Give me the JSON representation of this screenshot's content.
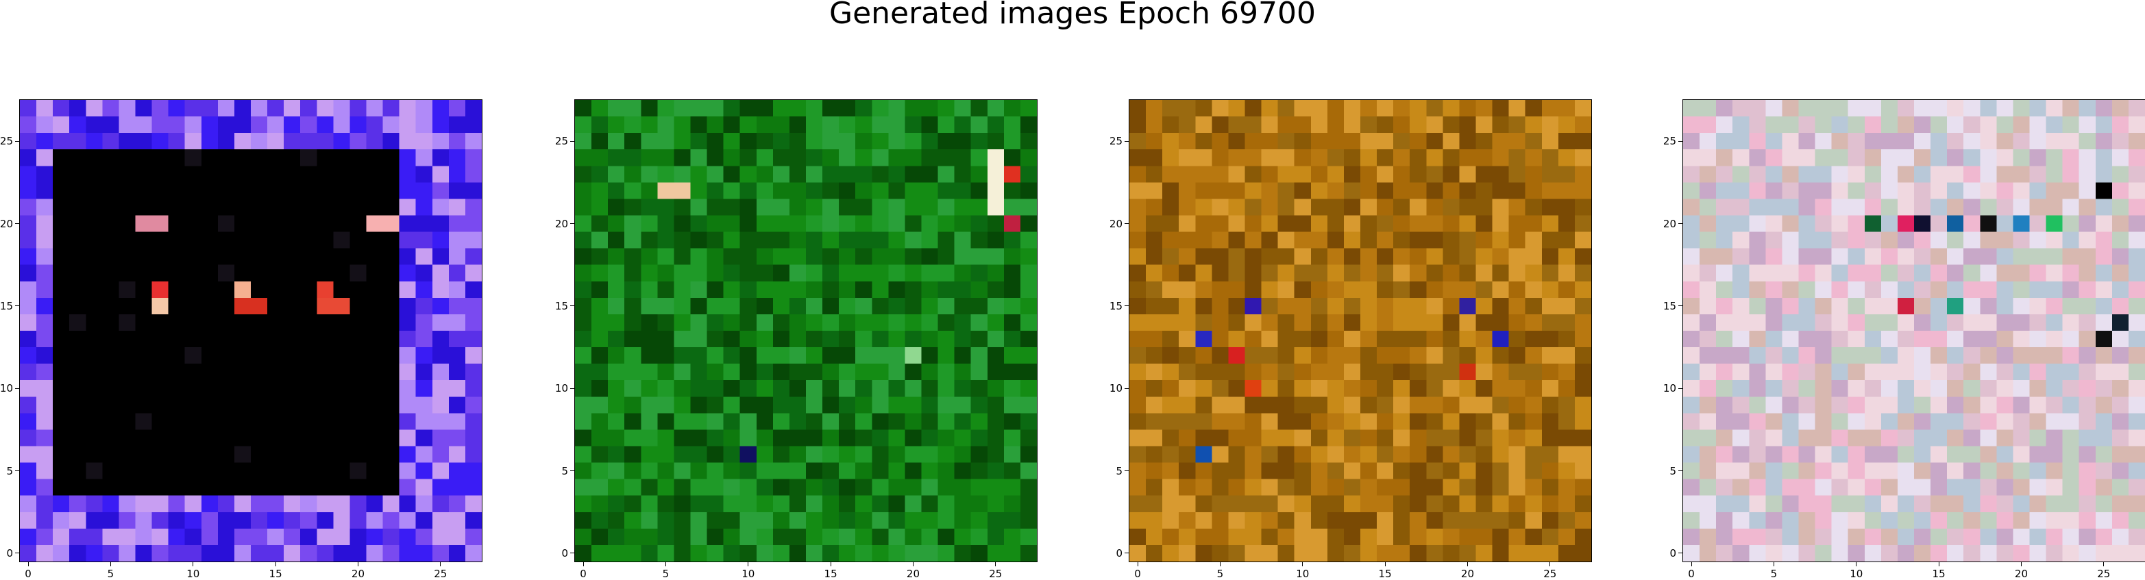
{
  "figure": {
    "title": "Generated images Epoch 69700"
  },
  "chart_data": [
    {
      "type": "heatmap",
      "image": "generated-sample-1",
      "grid": [
        28,
        28
      ],
      "title": "",
      "xlabel": "",
      "ylabel": "",
      "xlim": [
        -0.5,
        27.5
      ],
      "ylim": [
        27.5,
        -0.5
      ],
      "xticks": [
        0,
        5,
        10,
        15,
        20,
        25
      ],
      "yticks": [
        0,
        5,
        10,
        15,
        20,
        25
      ],
      "palette": {
        "background": "#000000",
        "border": [
          "#3a1cf5",
          "#7a4af0",
          "#b08af8",
          "#5a30e8",
          "#2a10d8",
          "#c89ef2"
        ],
        "highlights": [
          {
            "row": 7,
            "cols": [
              7,
              8
            ],
            "color": "#e08aa0"
          },
          {
            "row": 7,
            "cols": [
              21,
              22
            ],
            "color": "#f7b0b0"
          },
          {
            "row": 11,
            "cols": [
              8
            ],
            "color": "#e83030"
          },
          {
            "row": 12,
            "cols": [
              8
            ],
            "color": "#f5c8a8"
          },
          {
            "row": 11,
            "cols": [
              13
            ],
            "color": "#f5b090"
          },
          {
            "row": 12,
            "cols": [
              13,
              14
            ],
            "color": "#d83020"
          },
          {
            "row": 11,
            "cols": [
              18
            ],
            "color": "#e84030"
          },
          {
            "row": 12,
            "cols": [
              18,
              19
            ],
            "color": "#e84a35"
          }
        ]
      }
    },
    {
      "type": "heatmap",
      "image": "generated-sample-2",
      "grid": [
        28,
        28
      ],
      "title": "",
      "xlabel": "",
      "ylabel": "",
      "xlim": [
        -0.5,
        27.5
      ],
      "ylim": [
        27.5,
        -0.5
      ],
      "xticks": [
        0,
        5,
        10,
        15,
        20,
        25
      ],
      "yticks": [
        0,
        5,
        10,
        15,
        20,
        25
      ],
      "palette": {
        "base": [
          "#0a5a0a",
          "#148c14",
          "#0e7a0e",
          "#1f9a28",
          "#064806",
          "#2aa03a",
          "#0b6a12"
        ],
        "highlights": [
          {
            "row": 5,
            "cols": [
              5,
              6
            ],
            "color": "#f0c8a0"
          },
          {
            "row": 3,
            "cols": [
              25
            ],
            "color": "#f5f0d8"
          },
          {
            "row": 4,
            "cols": [
              25
            ],
            "color": "#f5f0d8"
          },
          {
            "row": 5,
            "cols": [
              25
            ],
            "color": "#f5f0d8"
          },
          {
            "row": 6,
            "cols": [
              25
            ],
            "color": "#f5f0d8"
          },
          {
            "row": 4,
            "cols": [
              26
            ],
            "color": "#e03020"
          },
          {
            "row": 7,
            "cols": [
              26
            ],
            "color": "#c02040"
          },
          {
            "row": 15,
            "cols": [
              20
            ],
            "color": "#90d890"
          },
          {
            "row": 21,
            "cols": [
              10
            ],
            "color": "#101060"
          }
        ]
      }
    },
    {
      "type": "heatmap",
      "image": "generated-sample-3",
      "grid": [
        28,
        28
      ],
      "title": "",
      "xlabel": "",
      "ylabel": "",
      "xlim": [
        -0.5,
        27.5
      ],
      "ylim": [
        27.5,
        -0.5
      ],
      "xticks": [
        0,
        5,
        10,
        15,
        20,
        25
      ],
      "yticks": [
        0,
        5,
        10,
        15,
        20,
        25
      ],
      "palette": {
        "base": [
          "#a86a08",
          "#c88a18",
          "#8a5a06",
          "#b87810",
          "#d89a30",
          "#7a4a04",
          "#9a6a10"
        ],
        "highlights": [
          {
            "row": 12,
            "cols": [
              7
            ],
            "color": "#3018b0"
          },
          {
            "row": 15,
            "cols": [
              6
            ],
            "color": "#d82020"
          },
          {
            "row": 14,
            "cols": [
              4
            ],
            "color": "#2828c0"
          },
          {
            "row": 17,
            "cols": [
              7
            ],
            "color": "#e04010"
          },
          {
            "row": 21,
            "cols": [
              4
            ],
            "color": "#1050b0"
          },
          {
            "row": 12,
            "cols": [
              20
            ],
            "color": "#3020a0"
          },
          {
            "row": 14,
            "cols": [
              22
            ],
            "color": "#2020c0"
          },
          {
            "row": 16,
            "cols": [
              20
            ],
            "color": "#d03010"
          }
        ]
      }
    },
    {
      "type": "heatmap",
      "image": "generated-sample-4",
      "grid": [
        28,
        28
      ],
      "title": "",
      "xlabel": "",
      "ylabel": "",
      "xlim": [
        -0.5,
        27.5
      ],
      "ylim": [
        27.5,
        -0.5
      ],
      "xticks": [
        0,
        5,
        10,
        15,
        20,
        25
      ],
      "yticks": [
        0,
        5,
        10,
        15,
        20,
        25
      ],
      "palette": {
        "base": [
          "#e0c0d0",
          "#c8a8c8",
          "#f0d8e0",
          "#b8c8d8",
          "#d8b8b0",
          "#e8e0f0",
          "#c0d0c0",
          "#f0b8d0"
        ],
        "highlights": [
          {
            "row": 7,
            "cols": [
              11
            ],
            "color": "#106030"
          },
          {
            "row": 7,
            "cols": [
              13
            ],
            "color": "#e02060"
          },
          {
            "row": 7,
            "cols": [
              14
            ],
            "color": "#101030"
          },
          {
            "row": 7,
            "cols": [
              16
            ],
            "color": "#1060a0"
          },
          {
            "row": 7,
            "cols": [
              18
            ],
            "color": "#101010"
          },
          {
            "row": 7,
            "cols": [
              20
            ],
            "color": "#2080c0"
          },
          {
            "row": 7,
            "cols": [
              22
            ],
            "color": "#20c060"
          },
          {
            "row": 5,
            "cols": [
              25
            ],
            "color": "#000000"
          },
          {
            "row": 12,
            "cols": [
              13
            ],
            "color": "#d02040"
          },
          {
            "row": 12,
            "cols": [
              16
            ],
            "color": "#20a080"
          },
          {
            "row": 14,
            "cols": [
              25
            ],
            "color": "#101010"
          },
          {
            "row": 13,
            "cols": [
              26
            ],
            "color": "#102030"
          }
        ]
      }
    }
  ]
}
